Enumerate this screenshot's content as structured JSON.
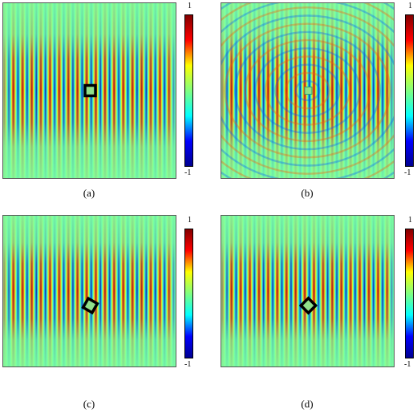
{
  "figure": {
    "panels": [
      {
        "label": "(a)",
        "colorbar": {
          "max_label": "1",
          "min_label": "-1"
        },
        "scatterer": {
          "shape": "square",
          "rotation_deg": 0,
          "outline": "thick-black",
          "fill": "#8fe08a"
        },
        "field_pattern": "plane-wave-cloaked"
      },
      {
        "label": "(b)",
        "colorbar": {
          "max_label": "1",
          "min_label": "-1"
        },
        "scatterer": {
          "shape": "square",
          "rotation_deg": 0,
          "outline": "thin",
          "fill": "#8fe08a"
        },
        "field_pattern": "plane-wave-scattered"
      },
      {
        "label": "(c)",
        "colorbar": {
          "max_label": "1",
          "min_label": "-1"
        },
        "scatterer": {
          "shape": "square",
          "rotation_deg": 30,
          "outline": "thick-black",
          "fill": "#8fe08a"
        },
        "field_pattern": "plane-wave-cloaked"
      },
      {
        "label": "(d)",
        "colorbar": {
          "max_label": "1",
          "min_label": "-1"
        },
        "scatterer": {
          "shape": "square",
          "rotation_deg": 45,
          "outline": "thick-black",
          "fill": "#8fe08a"
        },
        "field_pattern": "plane-wave-cloaked"
      }
    ],
    "colormap": [
      "#00008f",
      "#0000ff",
      "#00ffff",
      "#80ff80",
      "#ffff00",
      "#ff0000",
      "#800000"
    ],
    "background_color": "#ffffff"
  }
}
